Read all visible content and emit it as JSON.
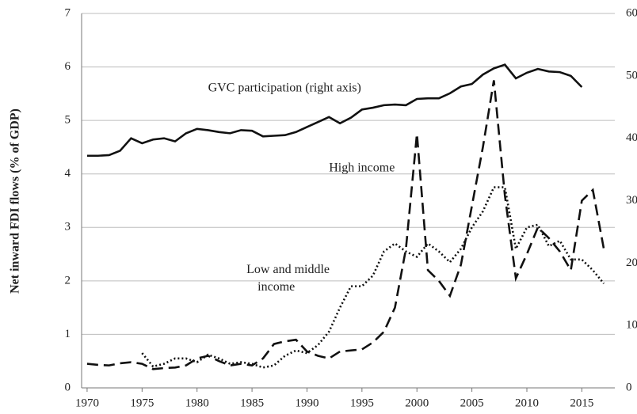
{
  "chart_data": {
    "type": "line",
    "y_label": "Net inward FDI flows (% of GDP)",
    "annotations": [
      {
        "lines": [
          "GVC participation (right axis)"
        ],
        "x": 1981,
        "y": 5.6
      },
      {
        "lines": [
          "High income"
        ],
        "x": 1992,
        "y": 4.1
      },
      {
        "lines": [
          "Low and middle",
          "income"
        ],
        "x": 1984.5,
        "y": 2.2
      }
    ],
    "x": [
      1970,
      1971,
      1972,
      1973,
      1974,
      1975,
      1976,
      1977,
      1978,
      1979,
      1980,
      1981,
      1982,
      1983,
      1984,
      1985,
      1986,
      1987,
      1988,
      1989,
      1990,
      1991,
      1992,
      1993,
      1994,
      1995,
      1996,
      1997,
      1998,
      1999,
      2000,
      2001,
      2002,
      2003,
      2004,
      2005,
      2006,
      2007,
      2008,
      2009,
      2010,
      2011,
      2012,
      2013,
      2014,
      2015,
      2016,
      2017
    ],
    "series": [
      {
        "name": "GVC participation (right axis)",
        "color": "#111",
        "dash": "none",
        "axis": "y2",
        "values": [
          37.2,
          37.2,
          37.3,
          38.0,
          40.0,
          39.2,
          39.8,
          40.0,
          39.5,
          40.8,
          41.5,
          41.3,
          41.0,
          40.8,
          41.3,
          41.2,
          40.3,
          40.4,
          40.5,
          41.0,
          41.8,
          42.6,
          43.4,
          42.4,
          43.3,
          44.6,
          44.9,
          45.3,
          45.4,
          45.3,
          46.3,
          46.4,
          46.4,
          47.2,
          48.3,
          48.7,
          50.2,
          51.2,
          51.8,
          49.6,
          50.5,
          51.1,
          50.7,
          50.6,
          50.0,
          48.2,
          null,
          null
        ]
      },
      {
        "name": "High income",
        "color": "#111",
        "dash": "14 7",
        "values": [
          0.45,
          0.43,
          0.42,
          0.46,
          0.48,
          0.45,
          0.35,
          0.37,
          0.38,
          0.42,
          0.55,
          0.6,
          0.5,
          0.42,
          0.45,
          0.42,
          0.55,
          0.82,
          0.87,
          0.9,
          0.68,
          0.6,
          0.55,
          0.68,
          0.7,
          0.72,
          0.85,
          1.05,
          1.5,
          2.6,
          4.75,
          2.2,
          2.0,
          1.72,
          2.3,
          3.4,
          4.5,
          5.75,
          3.6,
          2.05,
          2.5,
          3.0,
          2.8,
          2.55,
          2.2,
          3.5,
          3.7,
          2.6
        ]
      },
      {
        "name": "Low and middle income",
        "color": "#111",
        "dash": "2 3",
        "values": [
          null,
          null,
          null,
          null,
          null,
          0.65,
          0.4,
          0.45,
          0.55,
          0.55,
          0.48,
          0.62,
          0.55,
          0.45,
          0.48,
          0.45,
          0.38,
          0.42,
          0.6,
          0.7,
          0.65,
          0.8,
          1.05,
          1.5,
          1.9,
          1.9,
          2.1,
          2.55,
          2.7,
          2.55,
          2.45,
          2.7,
          2.55,
          2.35,
          2.6,
          3.0,
          3.3,
          3.75,
          3.75,
          2.6,
          3.0,
          3.05,
          2.65,
          2.75,
          2.4,
          2.4,
          2.2,
          1.95
        ]
      }
    ],
    "xlim": [
      1969.5,
      2018
    ],
    "xticks": [
      1970,
      1975,
      1980,
      1985,
      1990,
      1995,
      2000,
      2005,
      2010,
      2015
    ],
    "ylim": [
      0,
      7
    ],
    "yticks": [
      0,
      1,
      2,
      3,
      4,
      5,
      6,
      7
    ],
    "y2lim": [
      0,
      60
    ],
    "y2ticks": [
      0,
      10,
      20,
      30,
      40,
      50,
      60
    ],
    "grid": true
  }
}
